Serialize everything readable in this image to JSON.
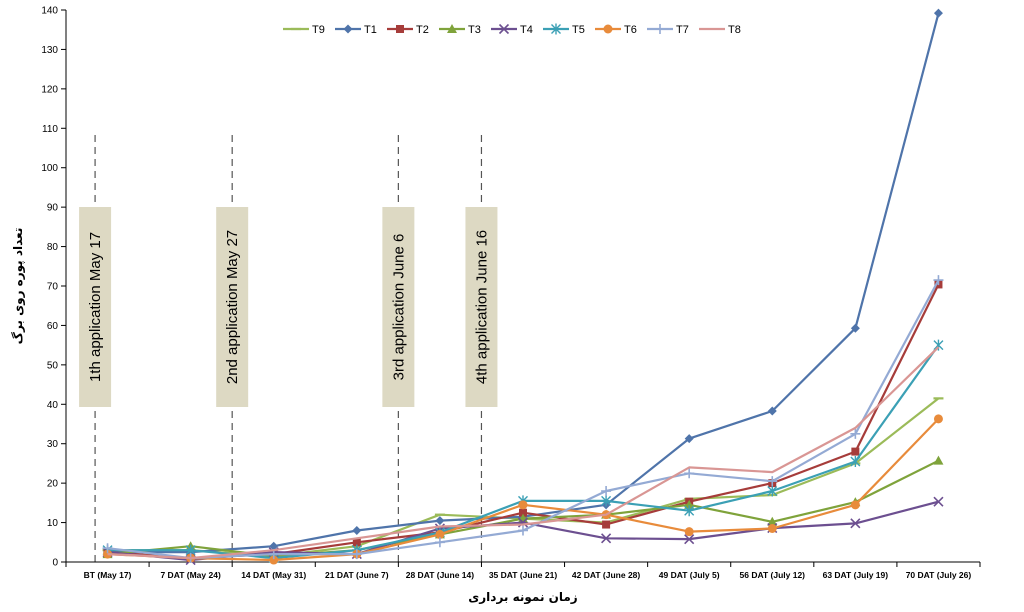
{
  "chart_data": {
    "type": "line",
    "xlabel": "زمان نمونه برداری",
    "ylabel": "تعداد پوره روی برگ",
    "ylim": [
      0,
      140
    ],
    "y_ticks": [
      0,
      10,
      20,
      30,
      40,
      50,
      60,
      70,
      80,
      90,
      100,
      110,
      120,
      130,
      140
    ],
    "grid": false,
    "legend_position": "top",
    "categories": [
      "BT (May 17)",
      "7 DAT (May 24)",
      "14 DAT (May 31)",
      "21 DAT (June 7)",
      "28 DAT (June 14)",
      "35 DAT (June 21)",
      "42 DAT (June 28)",
      "49 DAT (July 5)",
      "56 DAT (July 12)",
      "63 DAT (July 19)",
      "70 DAT (July 26)"
    ],
    "series": [
      {
        "name": "T9",
        "color": "#9BBB59",
        "marker": "dash",
        "values": [
          3,
          3,
          1.5,
          4,
          12,
          11,
          10,
          16,
          17,
          25,
          41.5
        ]
      },
      {
        "name": "T1",
        "color": "#4F74AA",
        "marker": "diamond",
        "values": [
          2.5,
          2.5,
          4,
          8,
          10.5,
          11.5,
          14.5,
          31.3,
          38.3,
          59.3,
          139.2
        ]
      },
      {
        "name": "T2",
        "color": "#A63C3A",
        "marker": "square",
        "values": [
          2.5,
          1,
          2,
          5,
          7.5,
          12.5,
          9.5,
          15.3,
          20,
          28,
          70.4
        ]
      },
      {
        "name": "T3",
        "color": "#7FA33B",
        "marker": "triangle",
        "values": [
          2,
          4,
          1.5,
          3,
          7,
          11,
          12,
          14.5,
          10.2,
          15.2,
          25.7
        ]
      },
      {
        "name": "T4",
        "color": "#6C4F90",
        "marker": "x",
        "values": [
          2.5,
          0.5,
          2.5,
          2,
          8.5,
          10,
          6,
          5.8,
          8.6,
          9.8,
          15.3
        ]
      },
      {
        "name": "T5",
        "color": "#3BA0B5",
        "marker": "star",
        "values": [
          3,
          3,
          1,
          3,
          7.5,
          15.5,
          15.5,
          13,
          18,
          25.5,
          55
        ]
      },
      {
        "name": "T6",
        "color": "#E88B3B",
        "marker": "circle",
        "values": [
          2,
          1,
          0.5,
          2,
          7,
          14.5,
          12,
          7.7,
          8.5,
          14.5,
          36.3
        ]
      },
      {
        "name": "T7",
        "color": "#94AAD4",
        "marker": "plus",
        "values": [
          3.5,
          1,
          2,
          2,
          5,
          8,
          18,
          22.5,
          20.5,
          32.5,
          71.5
        ]
      },
      {
        "name": "T8",
        "color": "#D99694",
        "marker": "none",
        "values": [
          2,
          1,
          3,
          6,
          9,
          9.5,
          12,
          24,
          22.8,
          34,
          54.5
        ]
      }
    ],
    "annotations": [
      {
        "text": "1th  application May 17",
        "at": "BT (May 17)"
      },
      {
        "text": "2nd  application May 27",
        "at": "7 DAT (May 24)"
      },
      {
        "text": "3rd application June 6",
        "at": "21 DAT (June 7)"
      },
      {
        "text": "4th application June 16",
        "at": "28 DAT (June 14)"
      }
    ]
  }
}
